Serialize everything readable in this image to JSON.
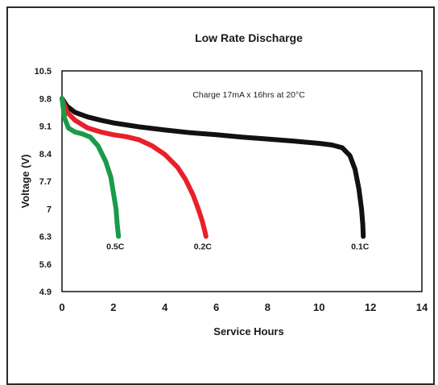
{
  "chart_data": {
    "type": "line",
    "title": "Low Rate Discharge",
    "xlabel": "Service Hours",
    "ylabel": "Voltage (V)",
    "annotation": "Charge 17mA x 16hrs at 20°C",
    "xlim": [
      0,
      14
    ],
    "ylim": [
      4.9,
      10.5
    ],
    "x_ticks": [
      "0",
      "2",
      "4",
      "6",
      "8",
      "10",
      "12",
      "14"
    ],
    "y_ticks": [
      "10.5",
      "9.8",
      "9.1",
      "8.4",
      "7.7",
      "7",
      "6.3",
      "5.6",
      "4.9"
    ],
    "grid": false,
    "series": [
      {
        "name": "0.1C",
        "color": "#111111",
        "x": [
          0,
          0.2,
          0.5,
          1,
          1.5,
          2,
          3,
          4,
          5,
          6,
          7,
          8,
          9,
          10,
          10.5,
          10.9,
          11.2,
          11.4,
          11.55,
          11.65,
          11.7,
          11.72
        ],
        "y": [
          9.8,
          9.6,
          9.45,
          9.33,
          9.25,
          9.18,
          9.08,
          9.0,
          8.93,
          8.88,
          8.82,
          8.77,
          8.72,
          8.66,
          8.62,
          8.55,
          8.35,
          8.0,
          7.5,
          7.0,
          6.6,
          6.3
        ]
      },
      {
        "name": "0.2C",
        "color": "#e8202a",
        "x": [
          0,
          0.2,
          0.5,
          1,
          1.5,
          2,
          2.5,
          3,
          3.5,
          4,
          4.5,
          4.8,
          5.1,
          5.3,
          5.45,
          5.55,
          5.6
        ],
        "y": [
          9.8,
          9.45,
          9.25,
          9.05,
          8.95,
          8.88,
          8.83,
          8.75,
          8.6,
          8.38,
          8.05,
          7.75,
          7.35,
          7.0,
          6.7,
          6.45,
          6.3
        ]
      },
      {
        "name": "0.5C",
        "color": "#1a9a4a",
        "x": [
          0,
          0.1,
          0.25,
          0.5,
          0.8,
          1.1,
          1.4,
          1.7,
          1.9,
          2.0,
          2.1,
          2.15,
          2.2
        ],
        "y": [
          9.8,
          9.3,
          9.05,
          8.95,
          8.9,
          8.82,
          8.6,
          8.2,
          7.8,
          7.4,
          7.0,
          6.6,
          6.3
        ]
      }
    ]
  }
}
